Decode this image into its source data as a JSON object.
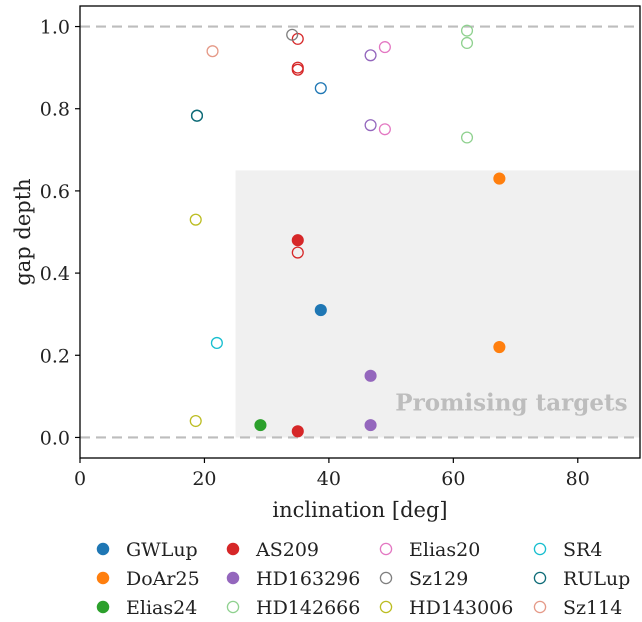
{
  "chart_data": {
    "type": "scatter",
    "xlabel": "inclination [deg]",
    "ylabel": "gap depth",
    "xlim": [
      0,
      90
    ],
    "ylim": [
      -0.05,
      1.05
    ],
    "xticks": [
      0,
      20,
      40,
      60,
      80
    ],
    "yticks": [
      0.0,
      0.2,
      0.4,
      0.6,
      0.8,
      1.0
    ],
    "ytick_labels": [
      "0.0",
      "0.2",
      "0.4",
      "0.6",
      "0.8",
      "1.0"
    ],
    "reference_lines": [
      0.0,
      1.0
    ],
    "promising_region": {
      "x_min": 25,
      "x_max": 90,
      "y_min": 0.0,
      "y_max": 0.65
    },
    "annotation": {
      "text": "Promising targets",
      "x": 88,
      "y": 0.065
    },
    "legend_placement": "bottom",
    "grid": false,
    "series": [
      {
        "name": "GWLup",
        "color": "#1f77b4",
        "points": [
          {
            "x": 38.7,
            "y": 0.85,
            "filled": false
          },
          {
            "x": 38.7,
            "y": 0.31,
            "filled": true
          }
        ]
      },
      {
        "name": "DoAr25",
        "color": "#ff7f0e",
        "points": [
          {
            "x": 67.4,
            "y": 0.63,
            "filled": true
          },
          {
            "x": 67.4,
            "y": 0.22,
            "filled": true
          }
        ]
      },
      {
        "name": "Elias24",
        "color": "#2ca02c",
        "points": [
          {
            "x": 29.0,
            "y": 0.03,
            "filled": true
          }
        ]
      },
      {
        "name": "AS209",
        "color": "#d62728",
        "points": [
          {
            "x": 35.0,
            "y": 0.97,
            "filled": false
          },
          {
            "x": 35.0,
            "y": 0.9,
            "filled": false
          },
          {
            "x": 35.0,
            "y": 0.895,
            "filled": false
          },
          {
            "x": 35.0,
            "y": 0.48,
            "filled": true
          },
          {
            "x": 35.0,
            "y": 0.45,
            "filled": false
          },
          {
            "x": 35.0,
            "y": 0.015,
            "filled": true
          }
        ]
      },
      {
        "name": "HD163296",
        "color": "#9467bd",
        "points": [
          {
            "x": 46.7,
            "y": 0.93,
            "filled": false
          },
          {
            "x": 46.7,
            "y": 0.76,
            "filled": false
          },
          {
            "x": 46.7,
            "y": 0.15,
            "filled": true
          },
          {
            "x": 46.7,
            "y": 0.03,
            "filled": true
          }
        ]
      },
      {
        "name": "HD142666",
        "color": "#8fd18f",
        "points": [
          {
            "x": 62.2,
            "y": 0.99,
            "filled": false
          },
          {
            "x": 62.2,
            "y": 0.96,
            "filled": false
          },
          {
            "x": 62.2,
            "y": 0.73,
            "filled": false
          }
        ]
      },
      {
        "name": "Elias20",
        "color": "#e377c2",
        "points": [
          {
            "x": 49.0,
            "y": 0.95,
            "filled": false
          },
          {
            "x": 49.0,
            "y": 0.75,
            "filled": false
          }
        ]
      },
      {
        "name": "Sz129",
        "color": "#7f7f7f",
        "points": [
          {
            "x": 34.1,
            "y": 0.98,
            "filled": false
          }
        ]
      },
      {
        "name": "HD143006",
        "color": "#bcbd22",
        "points": [
          {
            "x": 18.6,
            "y": 0.53,
            "filled": false
          },
          {
            "x": 18.6,
            "y": 0.04,
            "filled": false
          }
        ]
      },
      {
        "name": "SR4",
        "color": "#17becf",
        "points": [
          {
            "x": 22.0,
            "y": 0.23,
            "filled": false
          }
        ]
      },
      {
        "name": "RULup",
        "color": "#0e6b77",
        "points": [
          {
            "x": 18.8,
            "y": 0.783,
            "filled": false
          },
          {
            "x": 18.8,
            "y": 0.783,
            "filled": false
          }
        ]
      },
      {
        "name": "Sz114",
        "color": "#e59a88",
        "points": [
          {
            "x": 21.3,
            "y": 0.94,
            "filled": false
          }
        ]
      }
    ]
  }
}
